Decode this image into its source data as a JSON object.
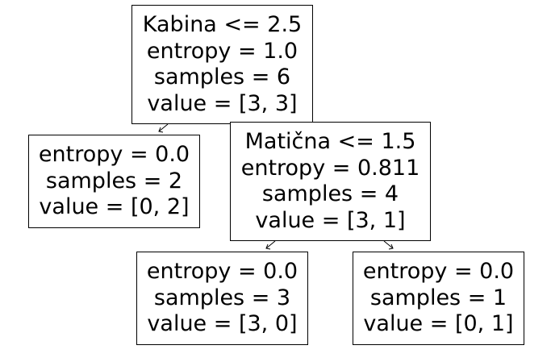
{
  "tree": {
    "nodes": [
      {
        "id": "root",
        "split": "Kabina <= 2.5",
        "entropy": "entropy = 1.0",
        "samples": "samples = 6",
        "value": "value = [3, 3]"
      },
      {
        "id": "left-leaf",
        "entropy": "entropy = 0.0",
        "samples": "samples = 2",
        "value": "value = [0, 2]"
      },
      {
        "id": "right-split",
        "split": "Matična <= 1.5",
        "entropy": "entropy = 0.811",
        "samples": "samples = 4",
        "value": "value = [3, 1]"
      },
      {
        "id": "right-left-leaf",
        "entropy": "entropy = 0.0",
        "samples": "samples = 3",
        "value": "value = [3, 0]"
      },
      {
        "id": "right-right-leaf",
        "entropy": "entropy = 0.0",
        "samples": "samples = 1",
        "value": "value = [0, 1]"
      }
    ],
    "edges": [
      {
        "from": "root",
        "to": "left-leaf"
      },
      {
        "from": "root",
        "to": "right-split"
      },
      {
        "from": "right-split",
        "to": "right-left-leaf"
      },
      {
        "from": "right-split",
        "to": "right-right-leaf"
      }
    ],
    "colors": {
      "stroke": "#000000",
      "fill": "#ffffff",
      "text": "#000000"
    }
  }
}
